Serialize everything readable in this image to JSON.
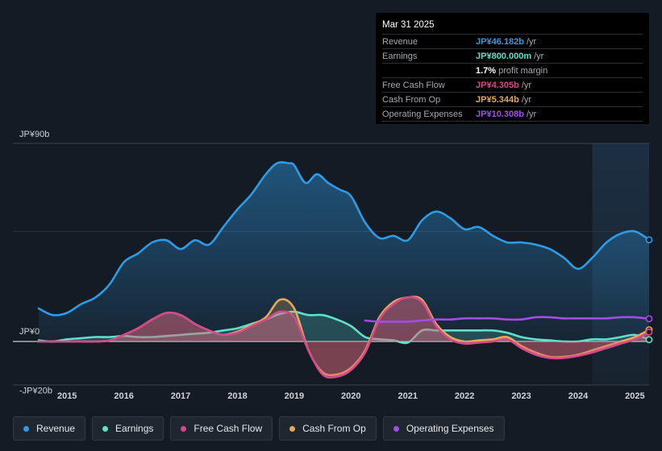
{
  "tooltip": {
    "date": "Mar 31 2025",
    "rows": [
      {
        "label": "Revenue",
        "value": "JP¥46.182b",
        "unit": "/yr",
        "color": "#2e9be6"
      },
      {
        "label": "Earnings",
        "value": "JP¥800.000m",
        "unit": "/yr",
        "color": "#5fe0cb"
      },
      {
        "label": "",
        "value": "1.7%",
        "unit": "profit margin",
        "color": "#ffffff"
      },
      {
        "label": "Free Cash Flow",
        "value": "JP¥4.305b",
        "unit": "/yr",
        "color": "#d34a8c"
      },
      {
        "label": "Cash From Op",
        "value": "JP¥5.344b",
        "unit": "/yr",
        "color": "#e6a95a"
      },
      {
        "label": "Operating Expenses",
        "value": "JP¥10.308b",
        "unit": "/yr",
        "color": "#a24de8"
      }
    ]
  },
  "legend": [
    {
      "label": "Revenue",
      "color": "#2e9be6"
    },
    {
      "label": "Earnings",
      "color": "#5fe0cb"
    },
    {
      "label": "Free Cash Flow",
      "color": "#d34a8c"
    },
    {
      "label": "Cash From Op",
      "color": "#e6a95a"
    },
    {
      "label": "Operating Expenses",
      "color": "#a24de8"
    }
  ],
  "chart_data": {
    "type": "area",
    "title": "",
    "xlabel": "",
    "ylabel": "",
    "unit": "JP¥ billions (annualized)",
    "xlim": [
      2014.5,
      2025.25
    ],
    "ylim": [
      -20,
      90
    ],
    "y_tick_labels": [
      {
        "value": 90,
        "label": "JP¥90b"
      },
      {
        "value": 0,
        "label": "JP¥0"
      },
      {
        "value": -20,
        "label": "-JP¥20b"
      }
    ],
    "x_ticks": [
      2015,
      2016,
      2017,
      2018,
      2019,
      2020,
      2021,
      2022,
      2023,
      2024,
      2025
    ],
    "x_tick_labels": [
      "2015",
      "2016",
      "2017",
      "2018",
      "2019",
      "2020",
      "2021",
      "2022",
      "2023",
      "2024",
      "2025"
    ],
    "highlight_start": 2024.25,
    "series": [
      {
        "name": "Revenue",
        "color": "#2e9be6",
        "fill": true,
        "x": [
          2014.5,
          2014.75,
          2015.0,
          2015.25,
          2015.5,
          2015.75,
          2016.0,
          2016.25,
          2016.5,
          2016.75,
          2017.0,
          2017.25,
          2017.5,
          2017.75,
          2018.0,
          2018.25,
          2018.5,
          2018.7,
          2018.9,
          2019.0,
          2019.2,
          2019.4,
          2019.6,
          2019.8,
          2020.0,
          2020.25,
          2020.5,
          2020.75,
          2021.0,
          2021.25,
          2021.5,
          2021.75,
          2022.0,
          2022.25,
          2022.5,
          2022.75,
          2023.0,
          2023.25,
          2023.5,
          2023.75,
          2024.0,
          2024.25,
          2024.5,
          2024.75,
          2025.0,
          2025.25
        ],
        "y": [
          15,
          12,
          13,
          17,
          20,
          26,
          36,
          40,
          45,
          46,
          42,
          46,
          44,
          52,
          60,
          67,
          76,
          81,
          81,
          80,
          72,
          76,
          72,
          69,
          66,
          54,
          47,
          48,
          46,
          55,
          59,
          56,
          51,
          52,
          48,
          45,
          45,
          44,
          42,
          38,
          33,
          38,
          45,
          49,
          50,
          46.2
        ]
      },
      {
        "name": "Earnings",
        "color": "#5fe0cb",
        "fill": true,
        "x": [
          2014.5,
          2014.75,
          2015.0,
          2015.25,
          2015.5,
          2015.75,
          2016.0,
          2016.25,
          2016.5,
          2016.75,
          2017.0,
          2017.25,
          2017.5,
          2017.75,
          2018.0,
          2018.25,
          2018.5,
          2018.75,
          2019.0,
          2019.25,
          2019.5,
          2019.75,
          2020.0,
          2020.25,
          2020.5,
          2020.75,
          2021.0,
          2021.25,
          2021.5,
          2021.75,
          2022.0,
          2022.25,
          2022.5,
          2022.75,
          2023.0,
          2023.25,
          2023.5,
          2023.75,
          2024.0,
          2024.25,
          2024.5,
          2024.75,
          2025.0,
          2025.25
        ],
        "y": [
          0.5,
          0,
          1,
          1.5,
          2,
          2,
          2.5,
          2,
          2,
          2.5,
          3,
          3.5,
          4,
          5,
          6,
          8,
          10,
          12.5,
          13.5,
          12,
          12,
          10,
          7,
          2,
          1,
          0.5,
          -0.5,
          5,
          5,
          5,
          5,
          5,
          5,
          4,
          2,
          1,
          0.5,
          0,
          0,
          1,
          1,
          2,
          3,
          0.8
        ]
      },
      {
        "name": "Free Cash Flow",
        "color": "#d34a8c",
        "fill": true,
        "x": [
          2014.5,
          2014.75,
          2015.0,
          2015.25,
          2015.5,
          2015.75,
          2016.0,
          2016.25,
          2016.5,
          2016.75,
          2017.0,
          2017.25,
          2017.5,
          2017.75,
          2018.0,
          2018.25,
          2018.5,
          2018.75,
          2019.0,
          2019.25,
          2019.5,
          2019.75,
          2020.0,
          2020.25,
          2020.5,
          2020.75,
          2021.0,
          2021.25,
          2021.5,
          2021.75,
          2022.0,
          2022.25,
          2022.5,
          2022.75,
          2023.0,
          2023.25,
          2023.5,
          2023.75,
          2024.0,
          2024.25,
          2024.5,
          2024.75,
          2025.0,
          2025.25
        ],
        "y": [
          0,
          0,
          0,
          0,
          0,
          0.5,
          3,
          6,
          10,
          13,
          12,
          8,
          5,
          3,
          4,
          7,
          10,
          13.5,
          11,
          -4,
          -15,
          -16,
          -13,
          -5,
          10,
          17,
          20,
          18,
          7,
          1,
          -1,
          -0.5,
          0,
          1,
          -3,
          -6,
          -7.5,
          -7.5,
          -6.5,
          -5,
          -3,
          -1,
          1,
          4.3
        ]
      },
      {
        "name": "Cash From Op",
        "color": "#e6a95a",
        "fill": true,
        "x": [
          2014.5,
          2014.75,
          2015.0,
          2015.25,
          2015.5,
          2015.75,
          2016.0,
          2016.25,
          2016.5,
          2016.75,
          2017.0,
          2017.25,
          2017.5,
          2017.75,
          2018.0,
          2018.25,
          2018.5,
          2018.75,
          2019.0,
          2019.25,
          2019.5,
          2019.75,
          2020.0,
          2020.25,
          2020.5,
          2020.75,
          2021.0,
          2021.25,
          2021.5,
          2021.75,
          2022.0,
          2022.25,
          2022.5,
          2022.75,
          2023.0,
          2023.25,
          2023.5,
          2023.75,
          2024.0,
          2024.25,
          2024.5,
          2024.75,
          2025.0,
          2025.25
        ],
        "y": [
          0,
          0,
          0,
          0,
          0,
          0.5,
          3,
          6,
          10,
          13,
          12,
          8,
          5,
          3,
          4.5,
          7.5,
          11,
          19,
          15,
          -4,
          -14,
          -15,
          -12,
          -4,
          11,
          18,
          20,
          19,
          8,
          2,
          0,
          0.5,
          1,
          2,
          -2,
          -5,
          -7,
          -7,
          -6,
          -4,
          -2,
          0,
          2,
          5.3
        ]
      },
      {
        "name": "Operating Expenses",
        "color": "#a24de8",
        "fill": false,
        "x": [
          2020.25,
          2020.5,
          2020.75,
          2021.0,
          2021.25,
          2021.5,
          2021.75,
          2022.0,
          2022.25,
          2022.5,
          2022.75,
          2023.0,
          2023.25,
          2023.5,
          2023.75,
          2024.0,
          2024.25,
          2024.5,
          2024.75,
          2025.0,
          2025.25
        ],
        "y": [
          9.5,
          9,
          9,
          9,
          9.5,
          10,
          10,
          10.5,
          10.5,
          10.5,
          10,
          10,
          11,
          11,
          10.5,
          10.5,
          10.5,
          10.5,
          11,
          11,
          10.3
        ]
      }
    ]
  }
}
